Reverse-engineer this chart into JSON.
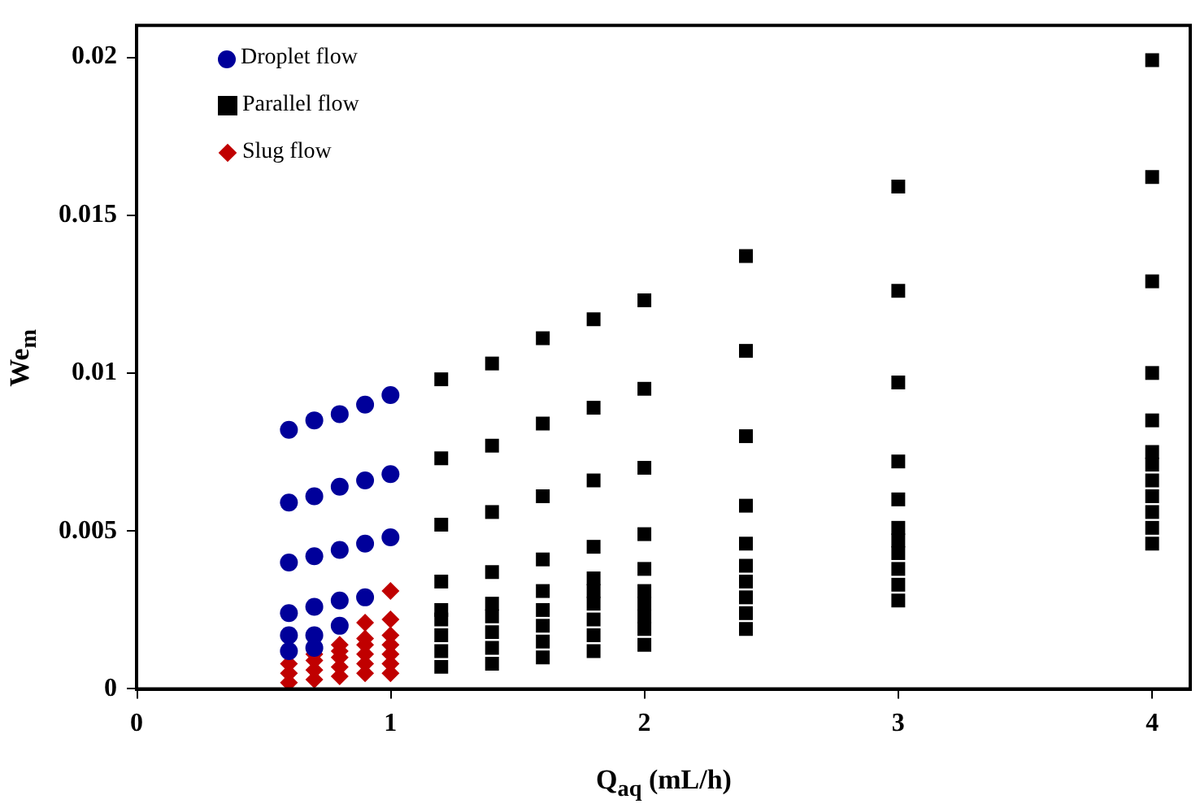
{
  "chart_data": {
    "type": "scatter",
    "xlabel": "Q$_{aq}$ (mL/h)",
    "ylabel": "We$_{m}$",
    "xlim": [
      0,
      4.15
    ],
    "xticks": [
      0,
      1,
      2,
      3,
      4
    ],
    "ylim": [
      0,
      0.021
    ],
    "yticks": [
      0,
      0.005,
      0.01,
      0.015,
      0.02
    ],
    "grid": false,
    "legend": "top left",
    "series": [
      {
        "name": "Droplet flow",
        "color": "#00009a",
        "marker": "circle",
        "x": [
          0.6,
          0.7,
          0.8,
          0.9,
          1.0,
          0.6,
          0.7,
          0.8,
          0.9,
          1.0,
          0.6,
          0.7,
          0.8,
          0.9,
          1.0,
          0.6,
          0.7,
          0.8,
          0.9,
          0.6,
          0.7,
          0.8,
          0.6,
          0.7
        ],
        "values": [
          0.0082,
          0.0085,
          0.0087,
          0.009,
          0.0093,
          0.0059,
          0.0061,
          0.0064,
          0.0066,
          0.0068,
          0.004,
          0.0042,
          0.0044,
          0.0046,
          0.0048,
          0.0024,
          0.0026,
          0.0028,
          0.0029,
          0.0017,
          0.0017,
          0.002,
          0.0012,
          0.0013
        ]
      },
      {
        "name": "Parallel flow",
        "color": "#000000",
        "marker": "square",
        "x": [
          1.2,
          1.2,
          1.2,
          1.2,
          1.2,
          1.2,
          1.2,
          1.2,
          1.2,
          1.4,
          1.4,
          1.4,
          1.4,
          1.4,
          1.4,
          1.4,
          1.4,
          1.4,
          1.6,
          1.6,
          1.6,
          1.6,
          1.6,
          1.6,
          1.6,
          1.6,
          1.6,
          1.8,
          1.8,
          1.8,
          1.8,
          1.8,
          1.8,
          1.8,
          1.8,
          1.8,
          1.8,
          2.0,
          2.0,
          2.0,
          2.0,
          2.0,
          2.0,
          2.0,
          2.0,
          2.0,
          2.0,
          2.4,
          2.4,
          2.4,
          2.4,
          2.4,
          2.4,
          2.4,
          2.4,
          2.4,
          2.4,
          3,
          3,
          3,
          3,
          3,
          3,
          3,
          3,
          3,
          3,
          3,
          4,
          4,
          4,
          4,
          4,
          4,
          4,
          4,
          4,
          4,
          4,
          4
        ],
        "values": [
          0.0098,
          0.0073,
          0.0052,
          0.0034,
          0.0007,
          0.0012,
          0.0017,
          0.0022,
          0.0025,
          0.0103,
          0.0077,
          0.0056,
          0.0037,
          0.0008,
          0.0013,
          0.0018,
          0.0023,
          0.0027,
          0.0111,
          0.0084,
          0.0061,
          0.0041,
          0.001,
          0.0015,
          0.002,
          0.0025,
          0.0031,
          0.0117,
          0.0089,
          0.0066,
          0.0045,
          0.0012,
          0.0017,
          0.0022,
          0.0027,
          0.0031,
          0.0035,
          0.0123,
          0.0095,
          0.007,
          0.0049,
          0.0038,
          0.0014,
          0.0019,
          0.0023,
          0.0027,
          0.0031,
          0.0137,
          0.0107,
          0.008,
          0.0058,
          0.0046,
          0.0019,
          0.0024,
          0.0029,
          0.0034,
          0.0039,
          0.0159,
          0.0126,
          0.0097,
          0.0072,
          0.006,
          0.0028,
          0.0033,
          0.0038,
          0.0043,
          0.0047,
          0.0051,
          0.0199,
          0.0162,
          0.0129,
          0.01,
          0.0085,
          0.0046,
          0.0051,
          0.0056,
          0.0061,
          0.0066,
          0.0071,
          0.0075
        ]
      },
      {
        "name": "Slug flow",
        "color": "#c00000",
        "marker": "diamond",
        "x": [
          0.6,
          0.6,
          0.6,
          0.7,
          0.7,
          0.7,
          0.7,
          0.8,
          0.8,
          0.8,
          0.8,
          0.8,
          0.9,
          0.9,
          0.9,
          0.9,
          0.9,
          0.9,
          1.0,
          1.0,
          1.0,
          1.0,
          1.0,
          1.0,
          1.0
        ],
        "values": [
          0.0002,
          0.0005,
          0.0008,
          0.0003,
          0.0006,
          0.0009,
          0.0011,
          0.0004,
          0.0007,
          0.001,
          0.0012,
          0.0014,
          0.0005,
          0.0008,
          0.0011,
          0.0014,
          0.0016,
          0.0021,
          0.0005,
          0.0008,
          0.0011,
          0.0014,
          0.0017,
          0.0022,
          0.0031
        ]
      }
    ]
  }
}
